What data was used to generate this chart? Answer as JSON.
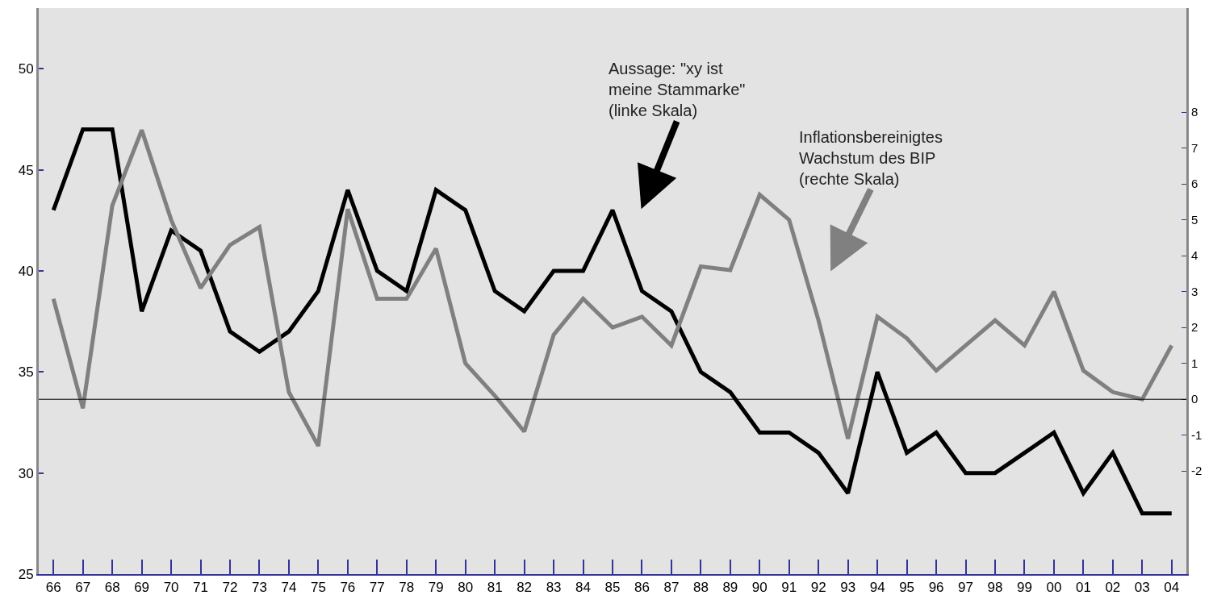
{
  "chart_data": {
    "type": "line",
    "categories": [
      "66",
      "67",
      "68",
      "69",
      "70",
      "71",
      "72",
      "73",
      "74",
      "75",
      "76",
      "77",
      "78",
      "79",
      "80",
      "81",
      "82",
      "83",
      "84",
      "85",
      "86",
      "87",
      "88",
      "89",
      "90",
      "91",
      "92",
      "93",
      "94",
      "95",
      "96",
      "97",
      "98",
      "99",
      "00",
      "01",
      "02",
      "03",
      "04"
    ],
    "series": [
      {
        "color": "#000000",
        "values": [
          43,
          47,
          47,
          38,
          42,
          41,
          37,
          36,
          37,
          39,
          44,
          40,
          39,
          44,
          43,
          39,
          38,
          40,
          40,
          43,
          39,
          38,
          35,
          34,
          32,
          32,
          31,
          29,
          35,
          31,
          32,
          30,
          30,
          31,
          32,
          29,
          31,
          28,
          28
        ]
      },
      {
        "color": "#808080",
        "axis": "y2",
        "values": [
          2.8,
          -0.25,
          5.4,
          7.5,
          5.0,
          3.1,
          4.3,
          4.8,
          0.2,
          -1.3,
          5.3,
          2.8,
          2.8,
          4.2,
          1.0,
          0.1,
          -0.9,
          1.8,
          2.8,
          2.0,
          2.3,
          1.5,
          3.7,
          3.6,
          5.7,
          5.0,
          2.2,
          -1.1,
          2.3,
          1.7,
          0.8,
          1.5,
          2.2,
          1.5,
          3.0,
          0.8,
          0.2,
          0.0,
          1.5
        ]
      }
    ],
    "ylim": [
      25,
      53
    ],
    "yticks": [
      25,
      30,
      35,
      40,
      45,
      50
    ],
    "y2lim": [
      -4.87,
      10.9
    ],
    "y2ticks": [
      -2,
      -1,
      0,
      1,
      2,
      3,
      4,
      5,
      6,
      7,
      8
    ],
    "ref_lines": [
      {
        "axis": "y2",
        "value": 0,
        "color": "#000000"
      }
    ],
    "annotations": [
      "Aussage: \"xy ist\nmeine Stammarke\"\n(linke Skala)",
      "Inflationsbereinigtes\nWachstum des BIP\n(rechte Skala)"
    ],
    "grid": false,
    "marker": "none",
    "line_style": "solid"
  }
}
